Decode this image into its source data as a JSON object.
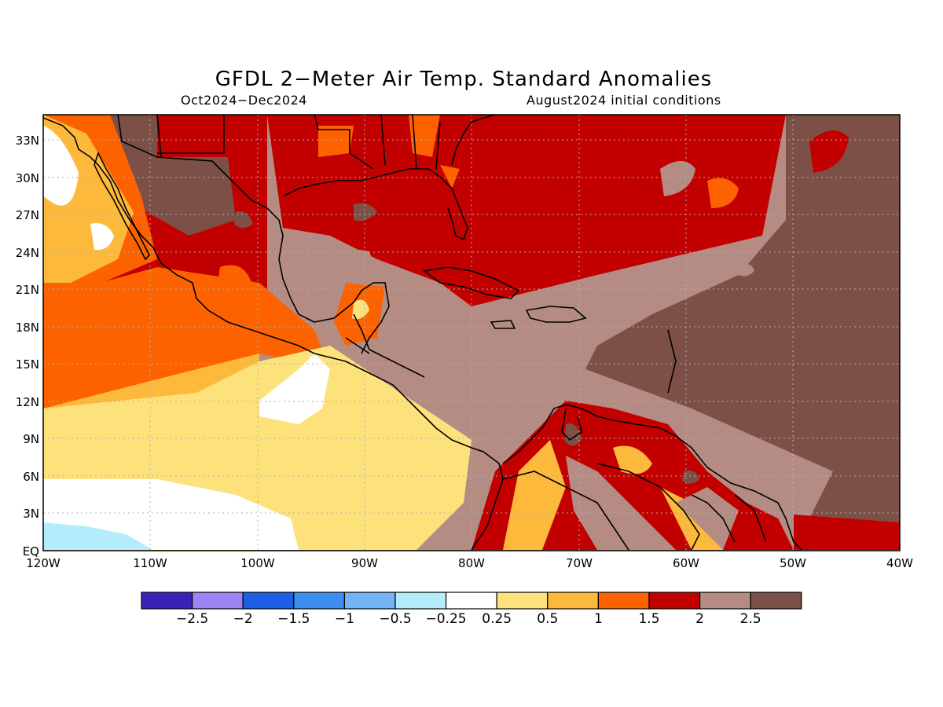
{
  "title": "GFDL 2−Meter Air Temp. Standard Anomalies",
  "period": "Oct2024−Dec2024",
  "initial_conditions": "August2024 initial conditions",
  "lat_labels": [
    "33N",
    "30N",
    "27N",
    "24N",
    "21N",
    "18N",
    "15N",
    "12N",
    "9N",
    "6N",
    "3N",
    "EQ"
  ],
  "lon_labels": [
    "120W",
    "110W",
    "100W",
    "90W",
    "80W",
    "70W",
    "60W",
    "50W",
    "40W"
  ],
  "colorbar": {
    "colors": [
      "#3a22b8",
      "#9d84f5",
      "#1f5ee8",
      "#3b8ff0",
      "#74b4f5",
      "#b5ecfb",
      "#ffffff",
      "#fde27c",
      "#fdb93b",
      "#fd6200",
      "#c20000",
      "#b48c84",
      "#7c5046"
    ],
    "labels": [
      "−2.5",
      "−2",
      "−1.5",
      "−1",
      "−0.5",
      "−0.25",
      "0.25",
      "0.5",
      "1",
      "1.5",
      "2",
      "2.5"
    ]
  }
}
